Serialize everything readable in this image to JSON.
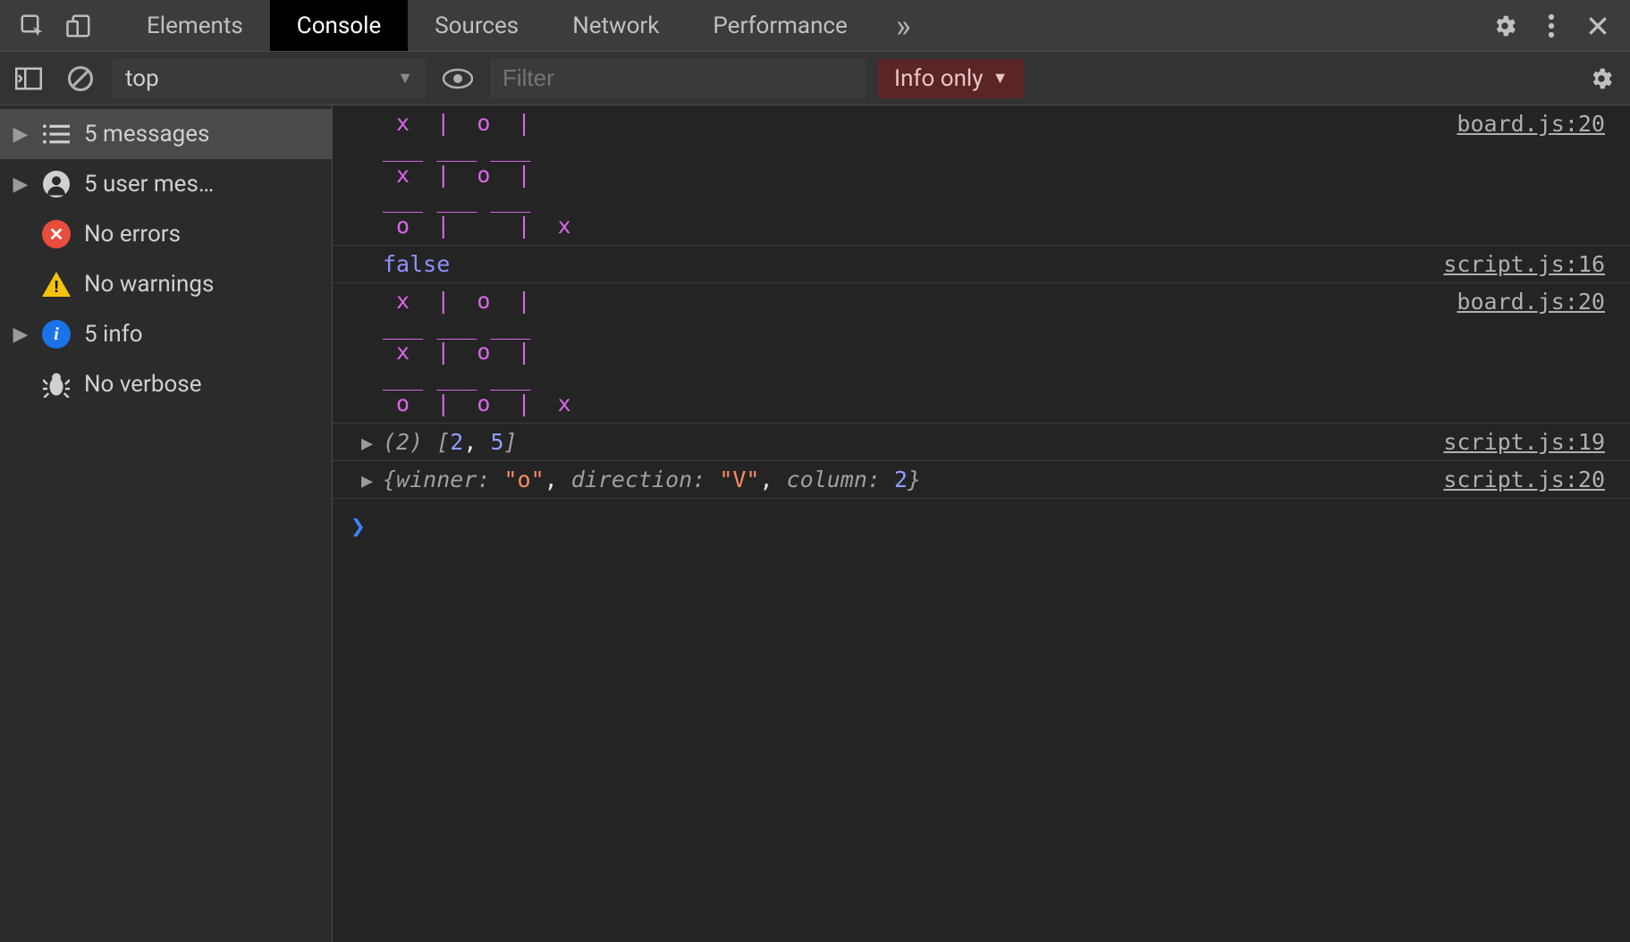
{
  "topbar": {
    "tabs": [
      "Elements",
      "Console",
      "Sources",
      "Network",
      "Performance"
    ],
    "active_index": 1,
    "overflow_glyph": "»"
  },
  "toolbar": {
    "context": "top",
    "filter_placeholder": "Filter",
    "level_label": "Info only"
  },
  "sidebar": {
    "rows": [
      {
        "label": "5 messages",
        "kind": "all"
      },
      {
        "label": "5 user mes…",
        "kind": "user"
      },
      {
        "label": "No errors",
        "kind": "error"
      },
      {
        "label": "No warnings",
        "kind": "warning"
      },
      {
        "label": "5 info",
        "kind": "info"
      },
      {
        "label": "No verbose",
        "kind": "verbose"
      }
    ],
    "active_index": 0
  },
  "logs": [
    {
      "type": "board",
      "rows": [
        [
          " x ",
          " o ",
          "   "
        ],
        [
          "___",
          "___",
          "___"
        ],
        [
          " x ",
          " o ",
          "   "
        ],
        [
          "___",
          "___",
          "___"
        ],
        [
          " o ",
          "   ",
          " x "
        ]
      ],
      "source": "board.js:20"
    },
    {
      "type": "value",
      "text": "false",
      "color": "blueish",
      "source": "script.js:16"
    },
    {
      "type": "board",
      "rows": [
        [
          " x ",
          " o ",
          "   "
        ],
        [
          "___",
          "___",
          "___"
        ],
        [
          " x ",
          " o ",
          "   "
        ],
        [
          "___",
          "___",
          "___"
        ],
        [
          " o ",
          " o ",
          " x "
        ]
      ],
      "source": "board.js:20"
    },
    {
      "type": "array",
      "length_label": "(2)",
      "open": "[",
      "items": [
        "2",
        "5"
      ],
      "close": "]",
      "source": "script.js:19"
    },
    {
      "type": "object",
      "open": "{",
      "entries": [
        {
          "key": "winner",
          "val": "\"o\"",
          "valKind": "str"
        },
        {
          "key": "direction",
          "val": "\"V\"",
          "valKind": "str"
        },
        {
          "key": "column",
          "val": "2",
          "valKind": "num"
        }
      ],
      "close": "}",
      "source": "script.js:20"
    }
  ],
  "prompt": {
    "caret": "❯"
  },
  "colors": {
    "magenta": "#d867e8",
    "num": "#8d9eff",
    "str": "#ff8a65",
    "gray": "#a0a0a0"
  }
}
